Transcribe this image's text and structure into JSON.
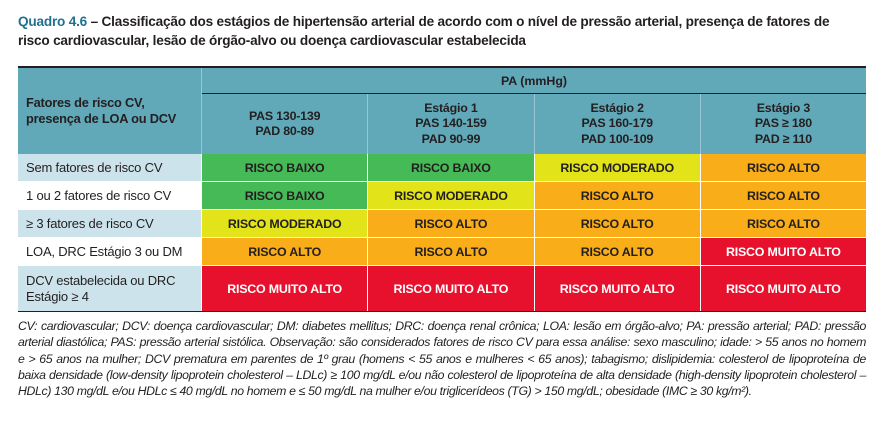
{
  "title": {
    "label": "Quadro 4.6",
    "text": "– Classificação dos estágios de hipertensão arterial de acordo com o nível de pressão arterial, presença de fatores de risco cardiovascular, lesão de órgão-alvo ou doença cardiovascular estabelecida"
  },
  "colors": {
    "header_teal": "#61a8b8",
    "label_blue": "#cce3eb",
    "title_teal": "#20708f",
    "text_dark": "#231f20",
    "risk": {
      "low": "#46ba57",
      "moderate": "#e2e419",
      "high": "#f9ad18",
      "very_high": "#e8112d"
    }
  },
  "table": {
    "pa_header": "PA (mmHg)",
    "corner_label": "Fatores de risco CV,\npresença de LOA ou DCV",
    "col_headers": [
      "PAS 130-139\nPAD 80-89",
      "Estágio 1\nPAS 140-159\nPAD 90-99",
      "Estágio 2\nPAS 160-179\nPAD 100-109",
      "Estágio 3\nPAS ≥ 180\nPAD ≥ 110"
    ],
    "rows": [
      {
        "label": "Sem fatores de risco CV",
        "cells": [
          {
            "text": "RISCO BAIXO",
            "level": "low"
          },
          {
            "text": "RISCO BAIXO",
            "level": "low"
          },
          {
            "text": "RISCO MODERADO",
            "level": "moderate"
          },
          {
            "text": "RISCO ALTO",
            "level": "high"
          }
        ]
      },
      {
        "label": "1 ou 2 fatores de risco CV",
        "cells": [
          {
            "text": "RISCO BAIXO",
            "level": "low"
          },
          {
            "text": "RISCO MODERADO",
            "level": "moderate"
          },
          {
            "text": "RISCO ALTO",
            "level": "high"
          },
          {
            "text": "RISCO ALTO",
            "level": "high"
          }
        ]
      },
      {
        "label": "≥ 3 fatores de risco CV",
        "cells": [
          {
            "text": "RISCO MODERADO",
            "level": "moderate"
          },
          {
            "text": "RISCO ALTO",
            "level": "high"
          },
          {
            "text": "RISCO ALTO",
            "level": "high"
          },
          {
            "text": "RISCO ALTO",
            "level": "high"
          }
        ]
      },
      {
        "label": "LOA, DRC Estágio 3 ou DM",
        "cells": [
          {
            "text": "RISCO ALTO",
            "level": "high"
          },
          {
            "text": "RISCO ALTO",
            "level": "high"
          },
          {
            "text": "RISCO ALTO",
            "level": "high"
          },
          {
            "text": "RISCO MUITO ALTO",
            "level": "very_high"
          }
        ]
      },
      {
        "label": "DCV estabelecida ou DRC\nEstágio ≥ 4",
        "cells": [
          {
            "text": "RISCO MUITO ALTO",
            "level": "very_high"
          },
          {
            "text": "RISCO MUITO ALTO",
            "level": "very_high"
          },
          {
            "text": "RISCO MUITO ALTO",
            "level": "very_high"
          },
          {
            "text": "RISCO MUITO ALTO",
            "level": "very_high"
          }
        ]
      }
    ]
  },
  "footnote": "CV: cardiovascular; DCV: doença cardiovascular; DM: diabetes mellitus; DRC: doença renal crônica; LOA: lesão em órgão-alvo; PA: pressão arterial; PAD: pressão arterial diastólica; PAS: pressão arterial sistólica. Observação: são considerados fatores de risco CV para essa análise: sexo masculino; idade: > 55 anos no homem e > 65 anos na mulher; DCV prematura em parentes de 1º grau (homens < 55 anos e mulheres < 65 anos); tabagismo; dislipidemia: colesterol de lipoproteína de baixa densidade (low-density lipoprotein cholesterol – LDLc) ≥ 100 mg/dL e/ou não colesterol de lipoproteína de alta densidade (high-density lipoprotein cholesterol – HDLc) 130 mg/dL e/ou HDLc ≤ 40 mg/dL no homem e ≤ 50 mg/dL na mulher e/ou triglicerídeos (TG) > 150 mg/dL; obesidade (IMC ≥ 30 kg/m²)."
}
